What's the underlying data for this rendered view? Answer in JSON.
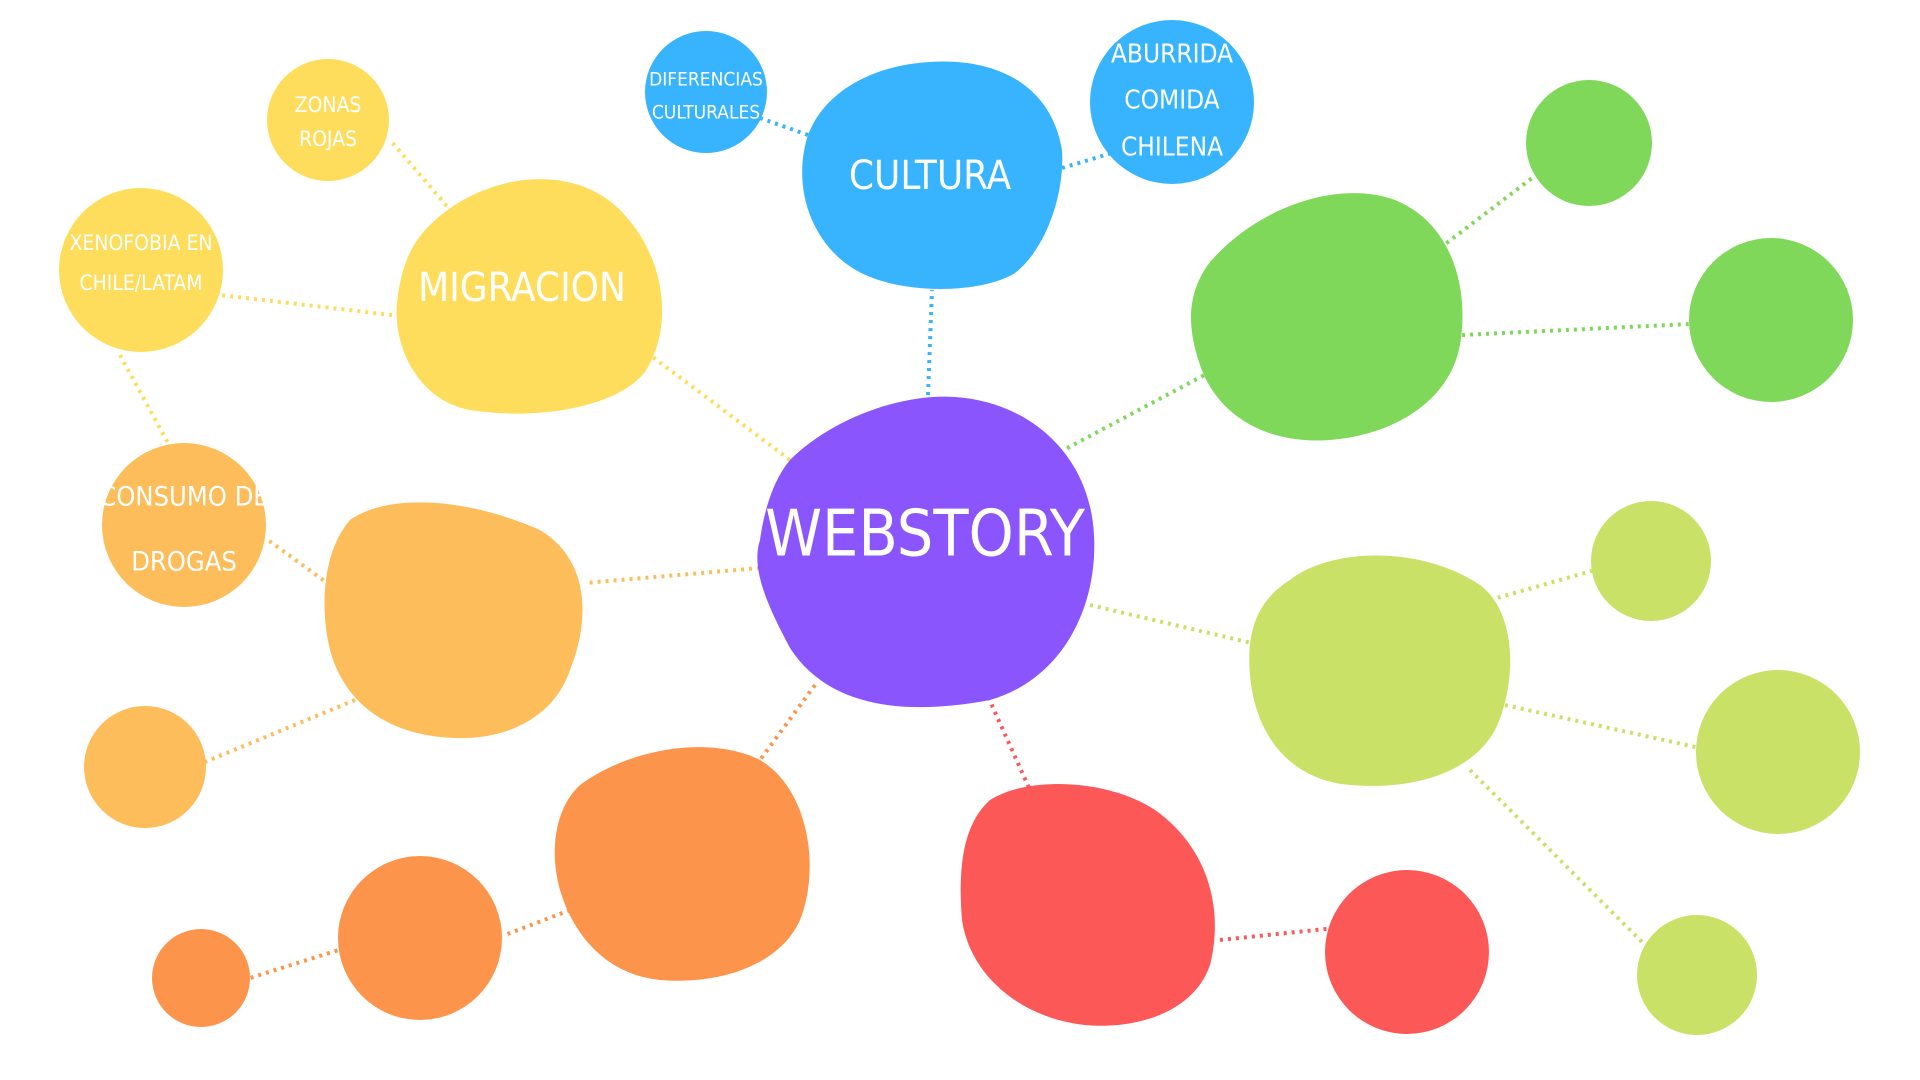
{
  "colors": {
    "background": "#ffffff",
    "center": "#8b55fd",
    "cultura": "#37b4fd",
    "migracion": "#ffdd5c",
    "orange_light": "#fdbd5b",
    "orange": "#fd944b",
    "red": "#fd5858",
    "green": "#7fd85a",
    "lime": "#c9e167"
  },
  "nodes": {
    "center": {
      "label": "WEBSTORY"
    },
    "cultura": {
      "label": "CULTURA"
    },
    "diferencias": {
      "label_line1": "DIFERENCIAS",
      "label_line2": "CULTURALES"
    },
    "aburrida": {
      "label_line1": "ABURRIDA",
      "label_line2": "COMIDA",
      "label_line3": "CHILENA"
    },
    "migracion": {
      "label": "MIGRACION"
    },
    "zonas": {
      "label_line1": "ZONAS",
      "label_line2": "ROJAS"
    },
    "xenofobia": {
      "label_line1": "XENOFOBIA EN",
      "label_line2": "CHILE/LATAM"
    },
    "consumo": {
      "label_line1": "CONSUMO DE",
      "label_line2": "DROGAS"
    }
  }
}
